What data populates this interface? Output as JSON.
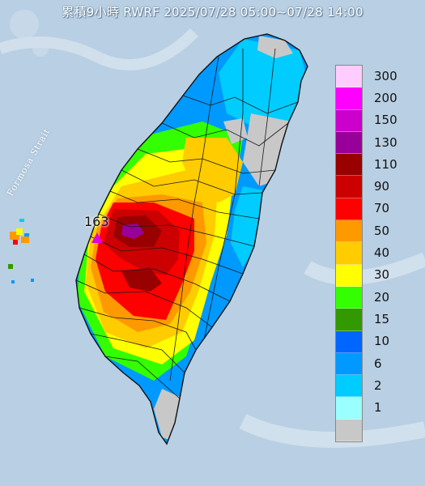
{
  "header": {
    "title": "累積9小時 RWRF 2025/07/28 05:00~07/28 14:00"
  },
  "map": {
    "sea_label": "Formosa Strait",
    "peak_value": "163",
    "colors": {
      "sea": "#b9cfe3",
      "land_neutral": "#c8c8c8",
      "boundaries": "#1a1a1a"
    }
  },
  "legend": {
    "levels": [
      {
        "label": "300",
        "color": "#ffccff"
      },
      {
        "label": "200",
        "color": "#ff00ff"
      },
      {
        "label": "150",
        "color": "#cc00cc"
      },
      {
        "label": "130",
        "color": "#990099"
      },
      {
        "label": "110",
        "color": "#990000"
      },
      {
        "label": "90",
        "color": "#cc0000"
      },
      {
        "label": "70",
        "color": "#ff0000"
      },
      {
        "label": "50",
        "color": "#ff9900"
      },
      {
        "label": "40",
        "color": "#ffcc00"
      },
      {
        "label": "30",
        "color": "#ffff00"
      },
      {
        "label": "20",
        "color": "#33ff00"
      },
      {
        "label": "15",
        "color": "#339900"
      },
      {
        "label": "10",
        "color": "#0066ff"
      },
      {
        "label": "6",
        "color": "#0099ff"
      },
      {
        "label": "2",
        "color": "#00ccff"
      },
      {
        "label": "1",
        "color": "#99ffff"
      },
      {
        "label": "",
        "color": "#c8c8c8"
      }
    ]
  }
}
